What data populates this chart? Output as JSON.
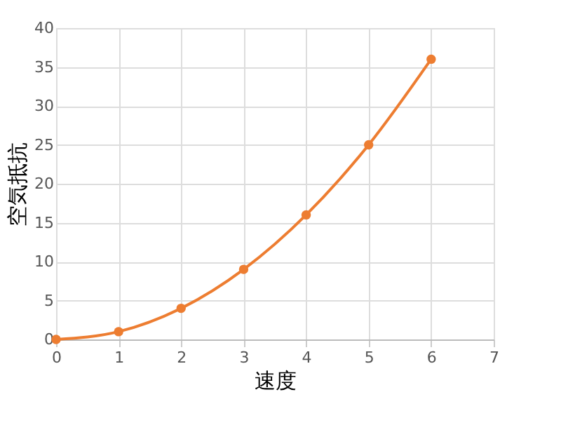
{
  "chart_data": {
    "type": "line",
    "xlabel": "速度",
    "ylabel": "空気抵抗",
    "x": [
      0,
      1,
      2,
      3,
      4,
      5,
      6
    ],
    "series": [
      {
        "color": "#ed7d31",
        "values": [
          0,
          1,
          4,
          9,
          16,
          25,
          36
        ]
      }
    ],
    "xlim": [
      0,
      7
    ],
    "xticks": [
      0,
      1,
      2,
      3,
      4,
      5,
      6,
      7
    ],
    "ylim": [
      0,
      40
    ],
    "yticks": [
      0,
      5,
      10,
      15,
      20,
      25,
      30,
      35,
      40
    ],
    "grid": true,
    "marker": "circle",
    "line_style": "solid"
  }
}
